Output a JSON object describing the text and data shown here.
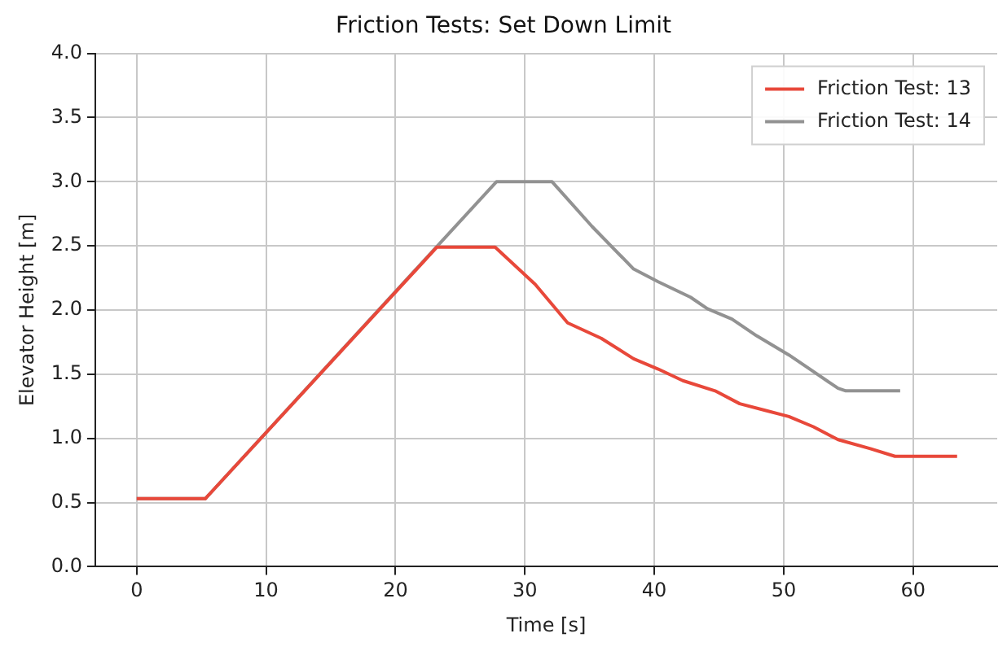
{
  "chart_data": {
    "type": "line",
    "title": "Friction Tests: Set Down Limit",
    "xlabel": "Time [s]",
    "ylabel": "Elevator Height [m]",
    "xlim": [
      -3.2,
      66.5
    ],
    "xticks": [
      0,
      10,
      20,
      30,
      40,
      50,
      60
    ],
    "ylim": [
      0,
      4
    ],
    "yticks": [
      {
        "value": 0,
        "label": "0.0"
      },
      {
        "value": 0.5,
        "label": "0.5"
      },
      {
        "value": 1,
        "label": "1.0"
      },
      {
        "value": 1.5,
        "label": "1.5"
      },
      {
        "value": 2,
        "label": "2.0"
      },
      {
        "value": 2.5,
        "label": "2.5"
      },
      {
        "value": 3,
        "label": "3.0"
      },
      {
        "value": 3.5,
        "label": "3.5"
      },
      {
        "value": 4,
        "label": "4.0"
      }
    ],
    "grid": true,
    "legend": "top right",
    "marker": "none",
    "line_style": "solid",
    "series": [
      {
        "name": "Friction Test: 13",
        "color": "#e8483a",
        "x": [
          0,
          5.3,
          23.2,
          27.7,
          30.8,
          33.3,
          35.9,
          38.4,
          40.3,
          42.2,
          44.7,
          46.6,
          48.5,
          50.4,
          52.3,
          54.2,
          56.7,
          58.6,
          63.4
        ],
        "values": [
          0.53,
          0.53,
          2.49,
          2.49,
          2.2,
          1.9,
          1.78,
          1.62,
          1.54,
          1.45,
          1.37,
          1.27,
          1.22,
          1.17,
          1.09,
          0.99,
          0.92,
          0.86,
          0.86
        ]
      },
      {
        "name": "Friction Test: 14",
        "color": "#929292",
        "x": [
          0,
          5.3,
          27.8,
          32.1,
          35.2,
          38.4,
          40.3,
          42.8,
          44.1,
          46,
          47.9,
          50.4,
          52.3,
          54.2,
          54.8,
          59
        ],
        "values": [
          0.53,
          0.53,
          3.0,
          3.0,
          2.65,
          2.32,
          2.22,
          2.1,
          2.01,
          1.93,
          1.8,
          1.65,
          1.52,
          1.39,
          1.37,
          1.37
        ]
      }
    ]
  }
}
